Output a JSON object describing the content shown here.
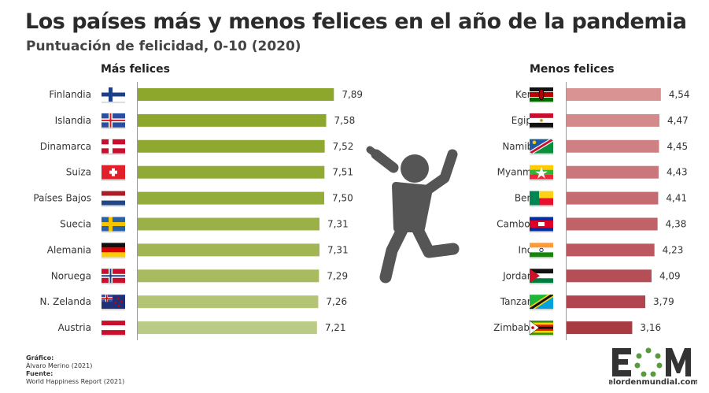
{
  "title": "Los países más y menos felices en el año de la pandemia",
  "subtitle": "Puntuación de felicidad, 0-10 (2020)",
  "footer": {
    "grafico_label": "Gráfico:",
    "grafico": "Álvaro Merino (2021)",
    "fuente_label": "Fuente:",
    "fuente": "World Happiness Report (2021)"
  },
  "logo": {
    "text": "EOM",
    "url_text": "elordenmundial.com"
  },
  "chart_data": [
    {
      "type": "bar",
      "orientation": "horizontal",
      "title": "Más felices",
      "categories": [
        "Finlandia",
        "Islandia",
        "Dinamarca",
        "Suiza",
        "Países Bajos",
        "Suecia",
        "Alemania",
        "Noruega",
        "N. Zelanda",
        "Austria"
      ],
      "values": [
        7.89,
        7.58,
        7.52,
        7.51,
        7.5,
        7.31,
        7.31,
        7.29,
        7.26,
        7.21
      ],
      "value_labels": [
        "7,89",
        "7,58",
        "7,52",
        "7,51",
        "7,50",
        "7,31",
        "7,31",
        "7,29",
        "7,26",
        "7,21"
      ],
      "colors": [
        "#8da62c",
        "#8da62c",
        "#8fa830",
        "#91aa34",
        "#94ac3a",
        "#9bb146",
        "#a1b652",
        "#a8bb5f",
        "#b3c475",
        "#bacb85"
      ],
      "xlim": [
        0,
        10
      ]
    },
    {
      "type": "bar",
      "orientation": "horizontal",
      "title": "Menos felices",
      "categories": [
        "Kenia",
        "Egipto",
        "Namibia",
        "Myanmar",
        "Benín",
        "Camboya",
        "India",
        "Jordania",
        "Tanzania",
        "Zimbabue"
      ],
      "values": [
        4.54,
        4.47,
        4.45,
        4.43,
        4.41,
        4.38,
        4.23,
        4.09,
        3.79,
        3.16
      ],
      "value_labels": [
        "4,54",
        "4,47",
        "4,45",
        "4,43",
        "4,41",
        "4,38",
        "4,23",
        "4,09",
        "3,79",
        "3,16"
      ],
      "colors": [
        "#d99393",
        "#d48a8b",
        "#cf8083",
        "#ca767a",
        "#c56c71",
        "#c06268",
        "#bb5860",
        "#b64e57",
        "#b1444e",
        "#a83a42"
      ],
      "xlim": [
        0,
        10
      ]
    }
  ],
  "icons": {
    "center": "dancing-person-icon"
  }
}
